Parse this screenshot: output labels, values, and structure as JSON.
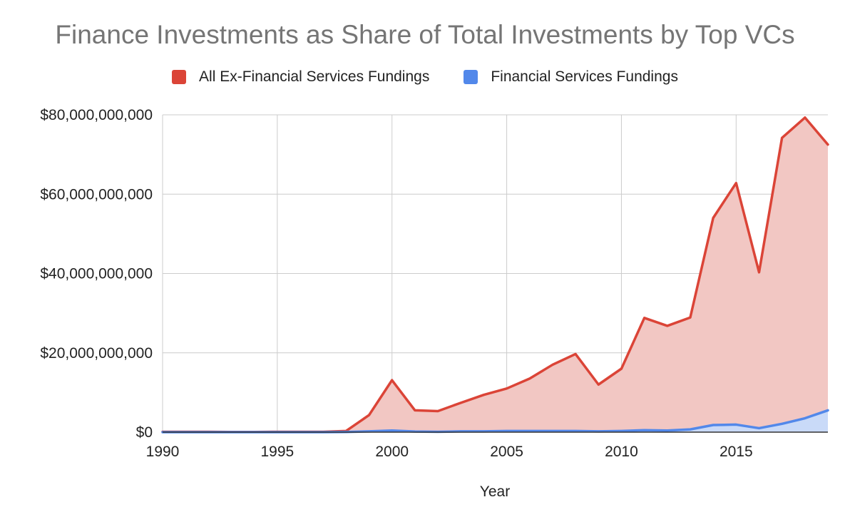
{
  "chart_data": {
    "type": "area",
    "title": "Finance Investments as Share of Total Investments by Top VCs",
    "xlabel": "Year",
    "ylabel": "",
    "xlim": [
      1990,
      2019
    ],
    "ylim": [
      0,
      80000000000
    ],
    "x_ticks": [
      "1990",
      "1995",
      "2000",
      "2005",
      "2010",
      "2015"
    ],
    "x_tick_values": [
      1990,
      1995,
      2000,
      2005,
      2010,
      2015
    ],
    "y_ticks": [
      "$0",
      "$20,000,000,000",
      "$40,000,000,000",
      "$60,000,000,000",
      "$80,000,000,000"
    ],
    "y_tick_values": [
      0,
      20000000000,
      40000000000,
      60000000000,
      80000000000
    ],
    "grid": true,
    "legend_position": "top",
    "x": [
      1990,
      1991,
      1992,
      1993,
      1994,
      1995,
      1996,
      1997,
      1998,
      1999,
      2000,
      2001,
      2002,
      2003,
      2004,
      2005,
      2006,
      2007,
      2008,
      2009,
      2010,
      2011,
      2012,
      2013,
      2014,
      2015,
      2016,
      2017,
      2018,
      2019
    ],
    "series": [
      {
        "name": "All Ex-Financial Services Fundings",
        "color": "#db4437",
        "fill": "#f2c7c3",
        "values": [
          100000000,
          100000000,
          100000000,
          50000000,
          50000000,
          100000000,
          100000000,
          100000000,
          300000000,
          4300000000,
          13100000000,
          5500000000,
          5300000000,
          7400000000,
          9400000000,
          11000000000,
          13500000000,
          17000000000,
          19700000000,
          12000000000,
          16000000000,
          28800000000,
          26800000000,
          28900000000,
          54000000000,
          62800000000,
          40300000000,
          74200000000,
          79300000000,
          72500000000
        ]
      },
      {
        "name": "Financial Services Fundings",
        "color": "#5288ea",
        "fill": "#c9daf8",
        "values": [
          0,
          0,
          0,
          0,
          0,
          0,
          0,
          0,
          50000000,
          200000000,
          400000000,
          150000000,
          100000000,
          200000000,
          200000000,
          300000000,
          300000000,
          300000000,
          300000000,
          200000000,
          300000000,
          500000000,
          400000000,
          700000000,
          1800000000,
          1900000000,
          1000000000,
          2100000000,
          3500000000,
          5500000000
        ]
      }
    ]
  }
}
